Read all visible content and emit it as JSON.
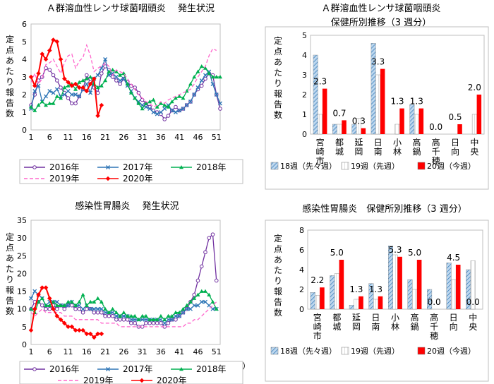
{
  "chart_data": [
    {
      "id": "strep_weekly",
      "type": "line",
      "title": "Ａ群溶血性レンサ球菌咽頭炎　 発生状況",
      "ylabel": "定点あたり報告数",
      "xlabel": "",
      "ylim": [
        0,
        6
      ],
      "yticks": [
        "0",
        "1",
        "2",
        "3",
        "4",
        "5",
        "6"
      ],
      "x_ticks": [
        "1",
        "6",
        "11",
        "16",
        "21",
        "26",
        "31",
        "36",
        "41",
        "46",
        "51"
      ],
      "grid": false,
      "legend_position": "bottom",
      "series": [
        {
          "name": "2016年",
          "color": "#7030a0",
          "dash": false,
          "marker": "circle",
          "values": [
            1.4,
            2.0,
            2.8,
            3.0,
            3.5,
            3.4,
            3.1,
            2.8,
            2.4,
            2.1,
            1.8,
            1.5,
            1.5,
            1.9,
            2.3,
            3.1,
            2.7,
            2.4,
            2.1,
            3.2,
            3.6,
            3.4,
            3.0,
            2.8,
            2.6,
            2.9,
            2.7,
            2.5,
            2.4,
            2.1,
            1.7,
            1.5,
            1.3,
            1.1,
            1.0,
            0.9,
            0.6,
            0.8,
            1.1,
            1.3,
            1.1,
            1.2,
            1.4,
            1.6,
            2.0,
            2.3,
            2.5,
            2.9,
            3.2,
            3.1,
            2.0,
            1.2
          ]
        },
        {
          "name": "2017年",
          "color": "#2e75b6",
          "dash": false,
          "marker": "x",
          "values": [
            1.2,
            2.2,
            2.5,
            1.6,
            1.9,
            2.2,
            2.1,
            2.3,
            1.9,
            2.0,
            2.2,
            2.0,
            2.0,
            1.9,
            2.3,
            2.6,
            2.1,
            2.9,
            3.1,
            3.5,
            4.0,
            3.1,
            3.2,
            3.0,
            2.8,
            2.9,
            2.5,
            2.2,
            1.8,
            1.6,
            1.4,
            1.3,
            1.2,
            1.0,
            0.9,
            1.0,
            1.2,
            1.4,
            1.1,
            1.0,
            1.1,
            1.2,
            1.4,
            1.6,
            2.0,
            2.4,
            2.8,
            3.1,
            3.3,
            2.6,
            2.0,
            1.5
          ]
        },
        {
          "name": "2018年",
          "color": "#00b050",
          "dash": false,
          "marker": "triangle",
          "values": [
            1.3,
            1.1,
            1.4,
            1.6,
            1.4,
            1.5,
            1.5,
            1.9,
            1.8,
            2.4,
            2.5,
            2.6,
            2.3,
            2.7,
            2.8,
            2.9,
            3.0,
            2.6,
            2.4,
            2.5,
            2.8,
            3.3,
            3.4,
            3.3,
            3.1,
            3.2,
            2.6,
            2.1,
            1.8,
            1.5,
            1.2,
            1.5,
            1.6,
            1.7,
            1.3,
            1.5,
            1.4,
            1.3,
            1.6,
            1.8,
            1.9,
            1.8,
            2.2,
            2.6,
            3.0,
            3.3,
            3.6,
            3.5,
            3.2,
            3.0,
            3.0,
            3.0
          ]
        },
        {
          "name": "2019年",
          "color": "#ff66cc",
          "dash": true,
          "marker": "none",
          "values": [
            2.7,
            3.2,
            2.6,
            2.9,
            3.7,
            3.8,
            4.0,
            3.6,
            3.2,
            3.8,
            4.2,
            4.3,
            3.5,
            3.9,
            4.1,
            4.8,
            4.2,
            3.3,
            3.5,
            3.6,
            3.8,
            3.6,
            3.1,
            3.4,
            3.3,
            3.2,
            2.9,
            2.6,
            2.3,
            2.0,
            1.8,
            1.6,
            1.5,
            1.3,
            1.4,
            1.6,
            1.5,
            1.7,
            1.8,
            1.9,
            2.0,
            2.1,
            2.2,
            2.3,
            2.6,
            3.0,
            3.3,
            3.6,
            4.2,
            4.6,
            4.5
          ]
        },
        {
          "name": "2020年",
          "color": "#ff0000",
          "dash": false,
          "marker": "diamond",
          "values": [
            3.0,
            2.5,
            3.2,
            4.3,
            4.0,
            4.5,
            5.1,
            5.0,
            4.0,
            2.9,
            2.7,
            2.5,
            2.6,
            2.4,
            2.4,
            2.2,
            2.6,
            2.9,
            0.8,
            1.4
          ]
        }
      ]
    },
    {
      "id": "strep_district",
      "type": "bar",
      "title_lines": [
        "Ａ群溶血性レンサ球菌咽頭炎",
        "保健所別推移（3 週分）"
      ],
      "ylabel": "定点あたり報告数",
      "ylim": [
        0,
        5
      ],
      "yticks": [
        "0",
        "1",
        "2",
        "3",
        "4",
        "5"
      ],
      "categories": [
        "宮崎市",
        "都城",
        "延岡",
        "日南",
        "小林",
        "高鍋",
        "高千穂",
        "日向",
        "中央"
      ],
      "series": [
        {
          "name": "18週（先々週）",
          "color": "#9dc3e6",
          "pattern": "hatch",
          "values": [
            4.0,
            0.5,
            0.5,
            4.6,
            0.0,
            1.5,
            0.0,
            0.0,
            0.0
          ]
        },
        {
          "name": "19週（先週）",
          "color": "#ffffff",
          "pattern": "hatch-light",
          "values": [
            1.0,
            0.5,
            0.8,
            3.0,
            0.5,
            1.0,
            0.0,
            0.0,
            1.0
          ]
        },
        {
          "name": "20週（今週）",
          "color": "#ff0000",
          "pattern": "solid",
          "values": [
            2.3,
            0.7,
            0.3,
            3.3,
            1.3,
            1.3,
            0.0,
            0.5,
            2.0
          ]
        }
      ],
      "value_labels": [
        "2.3",
        "0.7",
        "0.3",
        "3.3",
        "1.3",
        "1.3",
        "0.0",
        "0.5",
        "2.0"
      ],
      "legend": [
        "18週（先々週）",
        "19週（先週）",
        "20週（今週）"
      ],
      "legend_position": "bottom"
    },
    {
      "id": "gastro_weekly",
      "type": "line",
      "title": "感染性胃腸炎　 発生状況",
      "ylabel": "定点あたり報告数",
      "xlabel": "（週）",
      "ylim": [
        0,
        35
      ],
      "yticks": [
        "0",
        "5",
        "10",
        "15",
        "20",
        "25",
        "30",
        "35"
      ],
      "x_ticks": [
        "1",
        "6",
        "11",
        "16",
        "21",
        "26",
        "31",
        "36",
        "41",
        "46",
        "51"
      ],
      "grid": false,
      "legend_position": "bottom",
      "series": [
        {
          "name": "2016年",
          "color": "#7030a0",
          "dash": false,
          "marker": "circle",
          "values": [
            10,
            12,
            12,
            11,
            10,
            10,
            11,
            10,
            11,
            10,
            11,
            11,
            10,
            10,
            9,
            10,
            10,
            9,
            9,
            9,
            8,
            8,
            8,
            7,
            7,
            7,
            7,
            6,
            6,
            5,
            5,
            6,
            6,
            6,
            6,
            6,
            5,
            6,
            7,
            7,
            8,
            9,
            10,
            12,
            14,
            18,
            22,
            26,
            30,
            31,
            18
          ]
        },
        {
          "name": "2017年",
          "color": "#2e75b6",
          "dash": false,
          "marker": "x",
          "values": [
            13,
            15,
            14,
            13,
            11,
            12,
            12,
            12,
            11,
            11,
            11,
            12,
            11,
            11,
            10,
            11,
            10,
            10,
            10,
            10,
            9,
            9,
            9,
            8,
            8,
            8,
            8,
            7,
            7,
            7,
            7,
            7,
            7,
            7,
            7,
            7,
            6,
            7,
            7,
            8,
            8,
            9,
            10,
            10,
            11,
            11,
            12,
            12,
            11,
            10,
            10
          ]
        },
        {
          "name": "2018年",
          "color": "#00b050",
          "dash": false,
          "marker": "triangle",
          "values": [
            10,
            9,
            12,
            13,
            11,
            11,
            12,
            11,
            11,
            11,
            12,
            12,
            11,
            12,
            14,
            11,
            12,
            12,
            13,
            12,
            10,
            9,
            10,
            9,
            8,
            9,
            8,
            8,
            8,
            7,
            8,
            8,
            7,
            7,
            7,
            8,
            7,
            8,
            8,
            9,
            9,
            10,
            11,
            12,
            13,
            14,
            15,
            15,
            14,
            12,
            10
          ]
        },
        {
          "name": "2019年",
          "color": "#ff66cc",
          "dash": true,
          "marker": "none",
          "values": [
            9,
            8,
            9,
            10,
            9,
            9,
            9,
            9,
            9,
            8,
            8,
            8,
            7,
            7,
            7,
            7,
            7,
            7,
            7,
            6,
            6,
            6,
            6,
            6,
            5,
            5,
            5,
            5,
            5,
            5,
            5,
            5,
            5,
            5,
            5,
            5,
            5,
            5,
            5,
            5,
            5,
            5,
            6,
            6,
            7,
            7,
            8,
            9,
            10,
            11,
            12
          ]
        },
        {
          "name": "2020年",
          "color": "#ff0000",
          "dash": false,
          "marker": "diamond",
          "values": [
            4,
            10,
            14,
            16,
            16,
            13,
            10,
            8,
            7,
            6,
            5,
            5,
            4,
            4,
            4,
            3,
            3,
            2,
            3,
            3
          ]
        }
      ]
    },
    {
      "id": "gastro_district",
      "type": "bar",
      "title_lines": [
        "感染性胃腸炎　保健所別推移（3 週分）"
      ],
      "ylabel": "定点あたり報告数",
      "ylim": [
        0,
        8
      ],
      "yticks": [
        "0",
        "2",
        "4",
        "6",
        "8"
      ],
      "categories": [
        "宮崎市",
        "都城",
        "延岡",
        "日南",
        "小林",
        "高鍋",
        "高千穂",
        "日向",
        "中央"
      ],
      "series": [
        {
          "name": "18週（先々週）",
          "color": "#9dc3e6",
          "pattern": "hatch",
          "values": [
            1.7,
            3.4,
            0.4,
            2.6,
            6.4,
            3.0,
            2.0,
            4.7,
            4.0
          ]
        },
        {
          "name": "19週（先週）",
          "color": "#ffffff",
          "pattern": "hatch-light",
          "values": [
            1.4,
            3.6,
            1.0,
            1.0,
            5.5,
            2.0,
            0.0,
            3.0,
            4.9
          ]
        },
        {
          "name": "20週（今週）",
          "color": "#ff0000",
          "pattern": "solid",
          "values": [
            2.2,
            5.0,
            1.3,
            1.3,
            5.3,
            5.0,
            0.0,
            4.5,
            0.0
          ]
        }
      ],
      "value_labels": [
        "2.2",
        "5.0",
        "1.3",
        "1.3",
        "5.3",
        "5.0",
        "0.0",
        "4.5",
        "0.0"
      ],
      "legend": [
        "18週（先々週）",
        "19週（先週）",
        "20週（今週）"
      ],
      "legend_position": "bottom"
    }
  ]
}
